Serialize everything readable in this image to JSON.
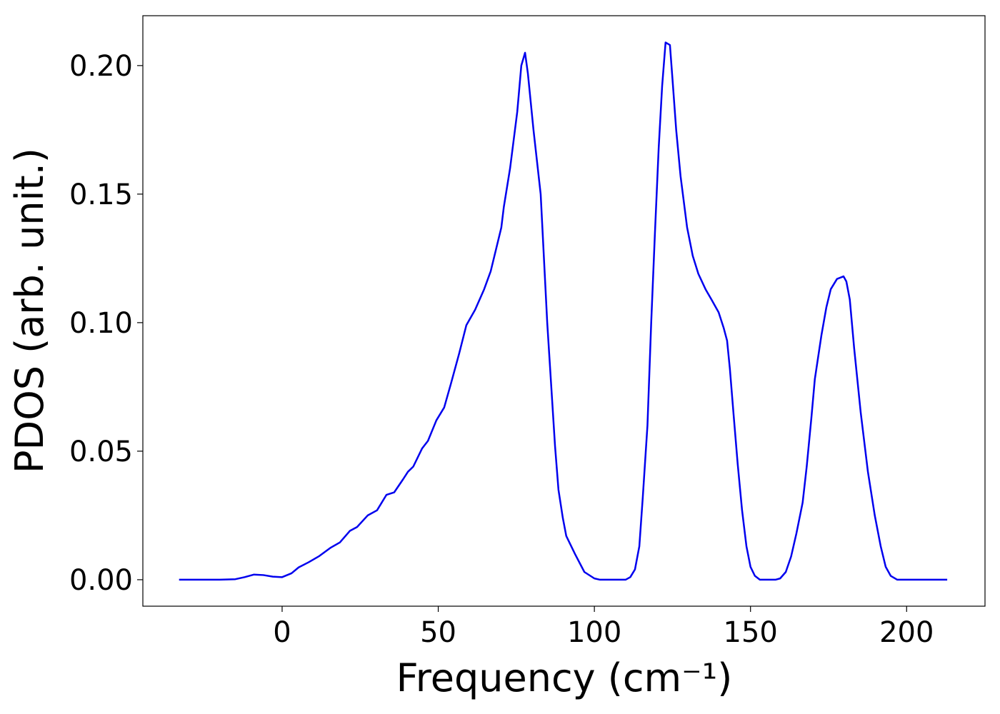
{
  "chart_data": {
    "type": "line",
    "xlabel": "Frequency (cm⁻¹)",
    "ylabel": "PDOS (arb. unit.)",
    "x": [
      -33,
      -20,
      -15,
      -12,
      -9,
      -6,
      -3,
      0,
      3,
      5.3,
      8.5,
      11.9,
      15.6,
      18.5,
      21.7,
      24,
      27.4,
      30.4,
      33.4,
      35.9,
      38.7,
      40.3,
      42,
      44.8,
      46.7,
      49.4,
      51.9,
      54,
      56.7,
      59,
      61.8,
      64.7,
      66.8,
      70.2,
      71,
      73,
      75.3,
      76.6,
      77.8,
      78.7,
      80.5,
      82.8,
      84.9,
      87.4,
      88.5,
      89.9,
      91,
      93.8,
      96.8,
      100,
      101.8,
      110,
      111.5,
      113,
      114.4,
      115.5,
      117,
      118.2,
      119.4,
      120.6,
      121.7,
      122.8,
      124.2,
      125,
      126.2,
      127.6,
      129.7,
      131.5,
      133.3,
      135.6,
      137.5,
      139.8,
      141.4,
      142.5,
      143.4,
      144.6,
      145.9,
      147.3,
      148.7,
      150,
      151.4,
      153,
      158,
      159.5,
      161.3,
      163,
      164.7,
      166.7,
      168,
      169.5,
      170.6,
      172.7,
      174.3,
      175.7,
      177.7,
      179.8,
      180.7,
      181.8,
      183.2,
      185.3,
      187.6,
      189.8,
      191.7,
      193.3,
      194.9,
      197,
      213
    ],
    "series": [
      {
        "name": "PDOS",
        "color": "#0000ee",
        "values": [
          0,
          0,
          0.0002,
          0.001,
          0.002,
          0.0018,
          0.0012,
          0.001,
          0.0025,
          0.0048,
          0.0068,
          0.0092,
          0.0125,
          0.0145,
          0.019,
          0.0205,
          0.025,
          0.027,
          0.033,
          0.034,
          0.039,
          0.042,
          0.044,
          0.051,
          0.054,
          0.062,
          0.067,
          0.076,
          0.088,
          0.099,
          0.105,
          0.113,
          0.12,
          0.137,
          0.145,
          0.16,
          0.182,
          0.2,
          0.205,
          0.197,
          0.175,
          0.15,
          0.1,
          0.052,
          0.035,
          0.024,
          0.017,
          0.01,
          0.003,
          0.0005,
          0,
          0,
          0.001,
          0.004,
          0.013,
          0.032,
          0.06,
          0.1,
          0.135,
          0.168,
          0.192,
          0.209,
          0.208,
          0.195,
          0.175,
          0.157,
          0.137,
          0.126,
          0.119,
          0.113,
          0.109,
          0.104,
          0.098,
          0.093,
          0.082,
          0.064,
          0.045,
          0.027,
          0.013,
          0.005,
          0.0015,
          0,
          0,
          0.0005,
          0.003,
          0.009,
          0.018,
          0.03,
          0.044,
          0.063,
          0.078,
          0.095,
          0.106,
          0.113,
          0.117,
          0.118,
          0.116,
          0.109,
          0.09,
          0.065,
          0.042,
          0.025,
          0.013,
          0.005,
          0.0015,
          0,
          0
        ]
      }
    ],
    "xlim": [
      -44.6,
      225.1
    ],
    "ylim": [
      -0.0103,
      0.2194
    ],
    "xticks": [
      0,
      50,
      100,
      150,
      200
    ],
    "yticks": [
      {
        "value": 0,
        "label": "0.00"
      },
      {
        "value": 0.05,
        "label": "0.05"
      },
      {
        "value": 0.1,
        "label": "0.10"
      },
      {
        "value": 0.15,
        "label": "0.15"
      },
      {
        "value": 0.2,
        "label": "0.20"
      }
    ],
    "grid": false
  }
}
